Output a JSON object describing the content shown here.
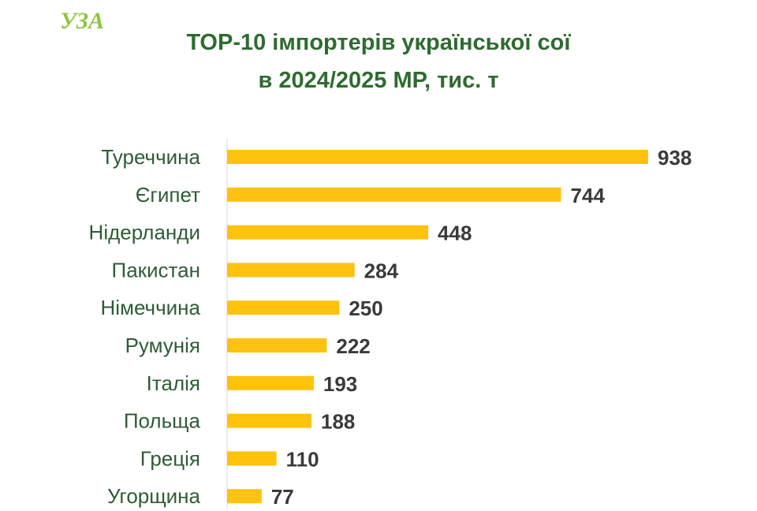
{
  "logo_text": "УЗА",
  "colors": {
    "title": "#2e6b2f",
    "bar": "#ffc20e",
    "category_text": "#2e5c35",
    "value_text": "#3a3a3a",
    "axis": "#d9d9d9",
    "logo": "#8cc63f"
  },
  "chart_data": {
    "type": "bar",
    "orientation": "horizontal",
    "title_line1": "ТОР-10 імпортерів української сої",
    "title_line2": "в 2024/2025 МР, тис. т",
    "categories": [
      "Туреччина",
      "Єгипет",
      "Нідерланди",
      "Пакистан",
      "Німеччина",
      "Румунія",
      "Італія",
      "Польща",
      "Греція",
      "Угорщина"
    ],
    "values": [
      938,
      744,
      448,
      284,
      250,
      222,
      193,
      188,
      110,
      77
    ],
    "xlim": [
      0,
      938
    ],
    "grid": false,
    "legend": "none",
    "data_labels": true
  }
}
